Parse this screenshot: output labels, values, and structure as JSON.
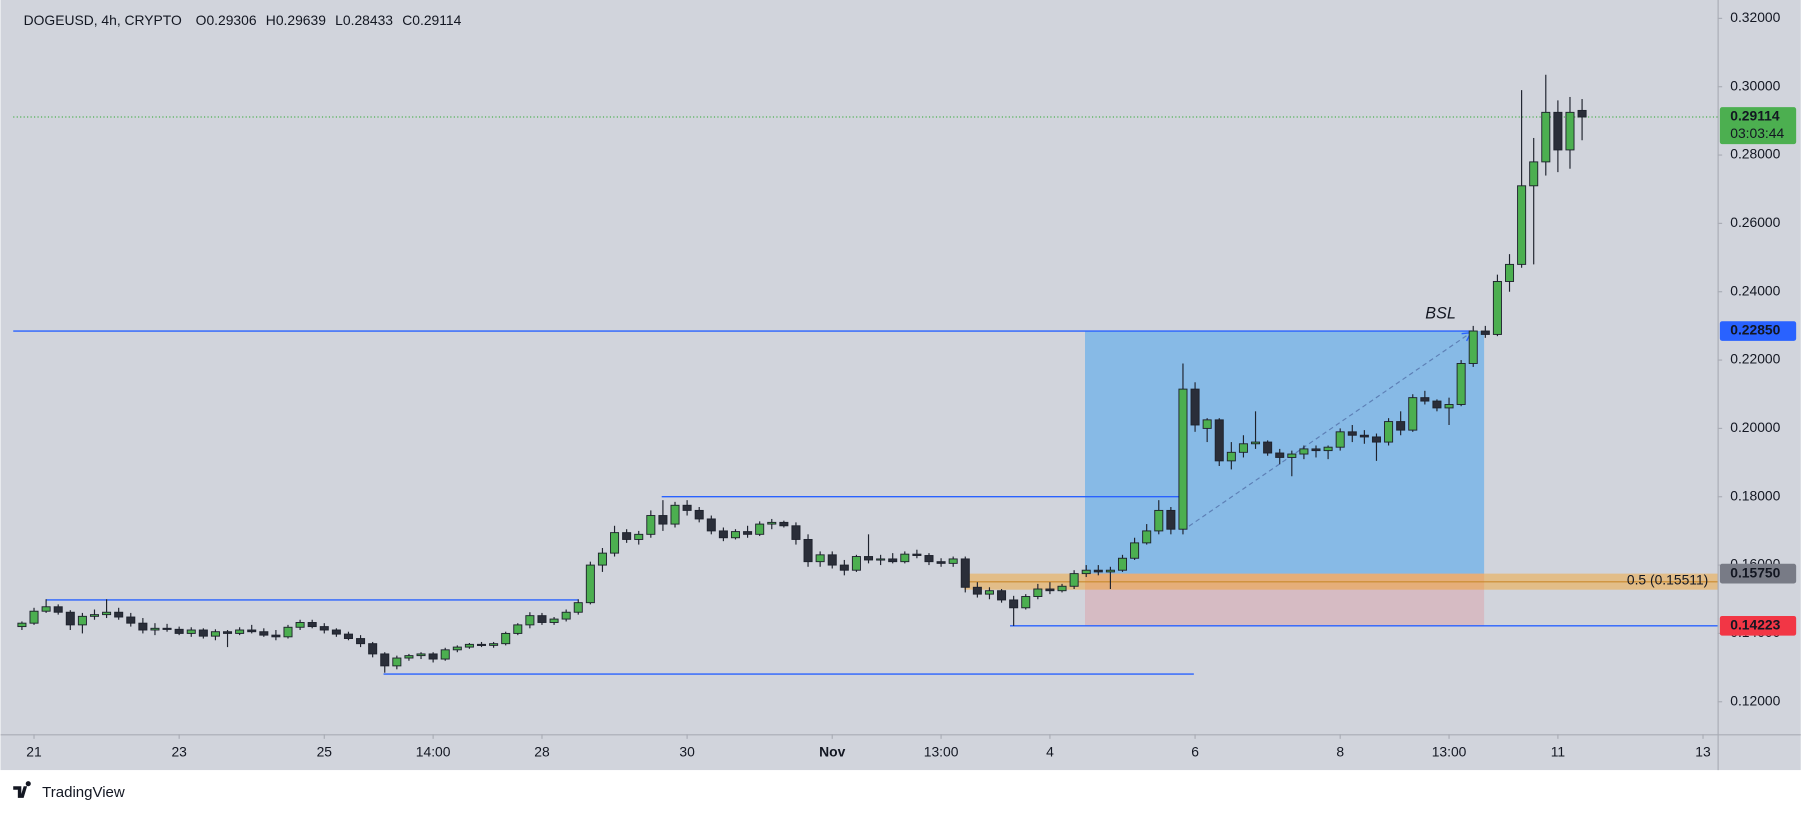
{
  "chart_data": {
    "type": "candlestick",
    "title": "DOGEUSD, 4h, CRYPTO",
    "ohlc_header": [
      {
        "prefix": "O",
        "value": 0.29306
      },
      {
        "prefix": "H",
        "value": 0.29639
      },
      {
        "prefix": "L",
        "value": 0.28433
      },
      {
        "prefix": "C",
        "value": 0.29114
      }
    ],
    "x": [
      -1,
      0,
      1,
      2,
      3,
      4,
      5,
      6,
      7,
      8,
      9,
      10,
      11,
      12,
      13,
      14,
      15,
      16,
      17,
      18,
      19,
      20,
      21,
      22,
      23,
      24,
      25,
      26,
      27,
      28,
      29,
      30,
      31,
      32,
      33,
      34,
      35,
      36,
      37,
      38,
      39,
      40,
      41,
      42,
      43,
      44,
      45,
      46,
      47,
      48,
      49,
      50,
      51,
      52,
      53,
      54,
      55,
      56,
      57,
      58,
      59,
      60,
      61,
      62,
      63,
      64,
      65,
      66,
      67,
      68,
      69,
      70,
      71,
      72,
      73,
      74,
      75,
      76,
      77,
      78,
      79,
      80,
      81,
      82,
      83,
      84,
      85,
      86,
      87,
      88,
      89,
      90,
      91,
      92,
      93,
      94,
      95,
      96,
      97,
      98,
      99,
      100,
      101,
      102,
      103,
      104,
      105,
      106,
      107,
      108,
      109,
      110,
      111,
      112,
      113,
      114,
      115,
      116,
      117,
      118,
      119,
      120,
      121,
      122,
      123,
      124,
      125,
      126,
      127,
      128
    ],
    "open": [
      0.142,
      0.143,
      0.1465,
      0.1478,
      0.1462,
      0.1425,
      0.145,
      0.1455,
      0.1462,
      0.1448,
      0.143,
      0.141,
      0.1415,
      0.1412,
      0.14,
      0.141,
      0.1392,
      0.1405,
      0.14,
      0.141,
      0.1405,
      0.1395,
      0.139,
      0.1418,
      0.1432,
      0.142,
      0.141,
      0.1398,
      0.1385,
      0.137,
      0.134,
      0.1305,
      0.1328,
      0.1335,
      0.134,
      0.1325,
      0.1352,
      0.136,
      0.1368,
      0.1365,
      0.137,
      0.14,
      0.1425,
      0.1452,
      0.1432,
      0.1442,
      0.1462,
      0.149,
      0.16,
      0.1635,
      0.1695,
      0.1675,
      0.169,
      0.1745,
      0.172,
      0.1775,
      0.176,
      0.1735,
      0.17,
      0.168,
      0.1698,
      0.169,
      0.172,
      0.1725,
      0.1715,
      0.1675,
      0.161,
      0.163,
      0.16,
      0.1585,
      0.1625,
      0.1615,
      0.1618,
      0.161,
      0.1632,
      0.1628,
      0.161,
      0.1605,
      0.1618,
      0.1535,
      0.1515,
      0.1525,
      0.1498,
      0.1475,
      0.1508,
      0.153,
      0.1525,
      0.1538,
      0.1575,
      0.1585,
      0.158,
      0.1585,
      0.162,
      0.1665,
      0.17,
      0.176,
      0.1705,
      0.2115,
      0.2,
      0.2025,
      0.1905,
      0.193,
      0.1955,
      0.196,
      0.1928,
      0.1915,
      0.1925,
      0.194,
      0.1935,
      0.1945,
      0.199,
      0.198,
      0.1975,
      0.196,
      0.202,
      0.1995,
      0.209,
      0.208,
      0.206,
      0.207,
      0.219,
      0.2285,
      0.2275,
      0.243,
      0.248,
      0.271,
      0.278,
      0.2925,
      0.2815,
      0.29306
    ],
    "high": [
      0.1435,
      0.1475,
      0.15,
      0.1485,
      0.1468,
      0.146,
      0.147,
      0.15,
      0.1475,
      0.146,
      0.1445,
      0.143,
      0.1428,
      0.142,
      0.1418,
      0.1415,
      0.1412,
      0.141,
      0.1418,
      0.1425,
      0.1415,
      0.141,
      0.1425,
      0.144,
      0.144,
      0.143,
      0.1415,
      0.1405,
      0.1395,
      0.1375,
      0.1345,
      0.1335,
      0.134,
      0.1345,
      0.1345,
      0.1358,
      0.1365,
      0.1372,
      0.1375,
      0.1375,
      0.1405,
      0.143,
      0.1462,
      0.146,
      0.1448,
      0.147,
      0.15,
      0.161,
      0.165,
      0.1715,
      0.1705,
      0.17,
      0.176,
      0.179,
      0.1785,
      0.179,
      0.177,
      0.1745,
      0.171,
      0.1705,
      0.1715,
      0.1728,
      0.1735,
      0.173,
      0.1725,
      0.169,
      0.164,
      0.164,
      0.1615,
      0.163,
      0.169,
      0.163,
      0.1635,
      0.164,
      0.1645,
      0.1635,
      0.162,
      0.1625,
      0.1625,
      0.155,
      0.1535,
      0.153,
      0.151,
      0.1515,
      0.1545,
      0.155,
      0.1545,
      0.1585,
      0.16,
      0.16,
      0.1595,
      0.163,
      0.168,
      0.172,
      0.179,
      0.177,
      0.219,
      0.2135,
      0.203,
      0.203,
      0.196,
      0.198,
      0.205,
      0.1965,
      0.194,
      0.1935,
      0.195,
      0.195,
      0.195,
      0.2,
      0.201,
      0.1995,
      0.1985,
      0.203,
      0.205,
      0.21,
      0.211,
      0.2085,
      0.209,
      0.22,
      0.23,
      0.23,
      0.245,
      0.251,
      0.299,
      0.285,
      0.3035,
      0.296,
      0.297,
      0.29639
    ],
    "low": [
      0.141,
      0.1425,
      0.146,
      0.1455,
      0.141,
      0.14,
      0.144,
      0.1445,
      0.144,
      0.142,
      0.14,
      0.1395,
      0.1405,
      0.1395,
      0.139,
      0.1385,
      0.138,
      0.136,
      0.1395,
      0.14,
      0.139,
      0.138,
      0.1385,
      0.141,
      0.1415,
      0.14,
      0.139,
      0.138,
      0.136,
      0.133,
      0.1285,
      0.1295,
      0.132,
      0.1325,
      0.1315,
      0.132,
      0.1345,
      0.1355,
      0.136,
      0.1358,
      0.1365,
      0.1395,
      0.1415,
      0.1425,
      0.1425,
      0.1435,
      0.1455,
      0.1485,
      0.158,
      0.1625,
      0.1665,
      0.166,
      0.168,
      0.17,
      0.171,
      0.1745,
      0.1725,
      0.169,
      0.167,
      0.1675,
      0.168,
      0.1685,
      0.1705,
      0.171,
      0.166,
      0.1595,
      0.1595,
      0.159,
      0.157,
      0.158,
      0.1605,
      0.16,
      0.1605,
      0.1605,
      0.162,
      0.16,
      0.1595,
      0.1595,
      0.152,
      0.1505,
      0.15,
      0.149,
      0.1422,
      0.147,
      0.15,
      0.1515,
      0.152,
      0.153,
      0.1565,
      0.157,
      0.153,
      0.158,
      0.1615,
      0.166,
      0.169,
      0.169,
      0.169,
      0.199,
      0.196,
      0.189,
      0.188,
      0.1915,
      0.194,
      0.192,
      0.1895,
      0.186,
      0.191,
      0.1915,
      0.191,
      0.1935,
      0.196,
      0.1955,
      0.1905,
      0.195,
      0.198,
      0.199,
      0.207,
      0.205,
      0.201,
      0.2065,
      0.218,
      0.2265,
      0.227,
      0.24,
      0.247,
      0.248,
      0.274,
      0.275,
      0.276,
      0.28433
    ],
    "close": [
      0.143,
      0.1465,
      0.1478,
      0.1462,
      0.1425,
      0.145,
      0.1455,
      0.1462,
      0.1448,
      0.143,
      0.141,
      0.1415,
      0.1412,
      0.14,
      0.141,
      0.1392,
      0.1405,
      0.14,
      0.141,
      0.1405,
      0.1395,
      0.139,
      0.1418,
      0.1432,
      0.142,
      0.141,
      0.1398,
      0.1385,
      0.137,
      0.134,
      0.1305,
      0.1328,
      0.1335,
      0.134,
      0.1325,
      0.1352,
      0.136,
      0.1368,
      0.1365,
      0.137,
      0.14,
      0.1425,
      0.1452,
      0.1432,
      0.1442,
      0.1462,
      0.149,
      0.16,
      0.1635,
      0.1695,
      0.1675,
      0.169,
      0.1745,
      0.172,
      0.1775,
      0.176,
      0.1735,
      0.17,
      0.168,
      0.1698,
      0.169,
      0.172,
      0.1725,
      0.1715,
      0.1675,
      0.161,
      0.163,
      0.16,
      0.1585,
      0.1625,
      0.1615,
      0.1618,
      0.161,
      0.1632,
      0.1628,
      0.161,
      0.1605,
      0.1618,
      0.1535,
      0.1515,
      0.1525,
      0.1498,
      0.1475,
      0.1508,
      0.153,
      0.1525,
      0.1538,
      0.1575,
      0.1585,
      0.158,
      0.1585,
      0.162,
      0.1665,
      0.17,
      0.176,
      0.1705,
      0.2115,
      0.201,
      0.2025,
      0.1905,
      0.193,
      0.1955,
      0.196,
      0.1928,
      0.1915,
      0.1925,
      0.194,
      0.1935,
      0.1945,
      0.199,
      0.198,
      0.1975,
      0.196,
      0.202,
      0.1995,
      0.209,
      0.208,
      0.206,
      0.207,
      0.219,
      0.2285,
      0.2275,
      0.243,
      0.248,
      0.271,
      0.278,
      0.2925,
      0.2815,
      0.2925,
      0.29114
    ],
    "up_color": "#4caf50",
    "down_color": "#2a2e39",
    "wick_color": "#1e222d",
    "xlim": [
      -1.72,
      139.2
    ],
    "ylim": [
      0.1105,
      0.3247
    ],
    "xticks": [
      {
        "value": 0,
        "label": "21"
      },
      {
        "value": 12,
        "label": "23"
      },
      {
        "value": 24,
        "label": "25"
      },
      {
        "value": 33,
        "label": "14:00"
      },
      {
        "value": 42,
        "label": "28"
      },
      {
        "value": 54,
        "label": "30"
      },
      {
        "value": 66,
        "label": "Nov"
      },
      {
        "value": 75,
        "label": "13:00"
      },
      {
        "value": 84,
        "label": "4"
      },
      {
        "value": 96,
        "label": "6"
      },
      {
        "value": 108,
        "label": "8"
      },
      {
        "value": 117,
        "label": "13:00"
      },
      {
        "value": 126,
        "label": "11"
      },
      {
        "value": 138,
        "label": "13"
      }
    ],
    "yticks": [
      {
        "value": 0.12,
        "label": "0.12000"
      },
      {
        "value": 0.14,
        "label": "0.14000"
      },
      {
        "value": 0.16,
        "label": "0.16000"
      },
      {
        "value": 0.18,
        "label": "0.18000"
      },
      {
        "value": 0.2,
        "label": "0.20000"
      },
      {
        "value": 0.22,
        "label": "0.22000"
      },
      {
        "value": 0.24,
        "label": "0.24000"
      },
      {
        "value": 0.26,
        "label": "0.26000"
      },
      {
        "value": 0.28,
        "label": "0.28000"
      },
      {
        "value": 0.3,
        "label": "0.30000"
      },
      {
        "value": 0.32,
        "label": "0.32000"
      }
    ],
    "grid": false,
    "zones": [
      {
        "x": [
          86.9,
          119.9
        ],
        "y": [
          0.2285,
          0.1575
        ],
        "color": "rgba(33,150,243,0.42)"
      },
      {
        "x": [
          86.9,
          119.9
        ],
        "y": [
          0.1575,
          0.14223
        ],
        "color": "rgba(242,54,69,0.16)"
      }
    ],
    "fib": {
      "x": 76.9,
      "zone": [
        0.1575,
        0.1528
      ],
      "level": 0.15511,
      "label": "0.5 (0.15511)",
      "color": "rgba(255,152,0,0.38)",
      "text_color": "#c98a2e"
    },
    "levels": [
      {
        "x": [
          -1.72,
          118.9
        ],
        "y": 0.2285,
        "color": "#2962ff"
      },
      {
        "x": [
          51.9,
          94.9
        ],
        "y": 0.18,
        "color": "#2962ff"
      },
      {
        "x": [
          1.0,
          45.0
        ],
        "y": 0.1498,
        "color": "#2962ff"
      },
      {
        "x": [
          28.9,
          95.9
        ],
        "y": 0.1281,
        "color": "#2962ff"
      },
      {
        "x": [
          80.7,
          139.2
        ],
        "y": 0.14223,
        "color": "#2962ff"
      }
    ],
    "arrow": {
      "x": [
        95.5,
        118.8
      ],
      "y": [
        0.1714,
        0.228
      ],
      "color": "#5d7fb5"
    },
    "annotations": [
      {
        "text": "BSL",
        "x": 116.3,
        "y": 0.2334,
        "color": "#2962ff"
      }
    ],
    "price_tags": [
      {
        "value": 0.29114,
        "color": "#4caf50",
        "sub": "03:03:44",
        "line": "dotted"
      },
      {
        "value": 0.2285,
        "label": "0.22850",
        "color": "#2962ff"
      },
      {
        "value": 0.1575,
        "label": "0.15750",
        "color": "#787b86"
      },
      {
        "value": 0.14223,
        "label": "0.14223",
        "color": "#f23645"
      }
    ],
    "source": "TradingView"
  }
}
